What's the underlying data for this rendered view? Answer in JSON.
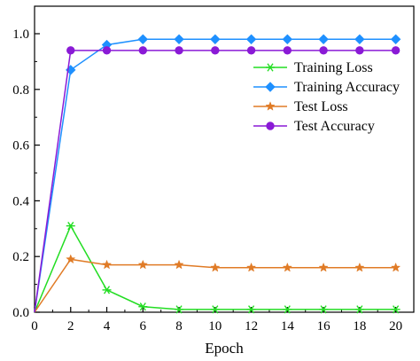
{
  "chart_data": {
    "type": "line",
    "title": "",
    "xlabel": "Epoch",
    "ylabel": "",
    "xlim": [
      0,
      21
    ],
    "ylim": [
      0,
      1.1
    ],
    "xticks": [
      0,
      2,
      4,
      6,
      8,
      10,
      12,
      14,
      16,
      18,
      20
    ],
    "yticks": [
      0.0,
      0.2,
      0.4,
      0.6,
      0.8,
      1.0
    ],
    "ytick_labels": [
      "0.0",
      "0.2",
      "0.4",
      "0.6",
      "0.8",
      "1.0"
    ],
    "grid": false,
    "legend_position": "top-right",
    "x": [
      0,
      2,
      4,
      6,
      8,
      10,
      12,
      14,
      16,
      18,
      20
    ],
    "series": [
      {
        "name": "Training Loss",
        "color": "#22dd22",
        "marker": "asterisk",
        "values": [
          0.0,
          0.31,
          0.08,
          0.02,
          0.01,
          0.01,
          0.01,
          0.01,
          0.01,
          0.01,
          0.01
        ]
      },
      {
        "name": "Training Accuracy",
        "color": "#1e90ff",
        "marker": "diamond",
        "values": [
          0.0,
          0.87,
          0.96,
          0.98,
          0.98,
          0.98,
          0.98,
          0.98,
          0.98,
          0.98,
          0.98
        ]
      },
      {
        "name": "Test Loss",
        "color": "#e07b26",
        "marker": "star",
        "values": [
          0.0,
          0.19,
          0.17,
          0.17,
          0.17,
          0.16,
          0.16,
          0.16,
          0.16,
          0.16,
          0.16
        ]
      },
      {
        "name": "Test Accuracy",
        "color": "#8a1ad6",
        "marker": "circle",
        "values": [
          0.0,
          0.94,
          0.94,
          0.94,
          0.94,
          0.94,
          0.94,
          0.94,
          0.94,
          0.94,
          0.94
        ]
      }
    ]
  }
}
